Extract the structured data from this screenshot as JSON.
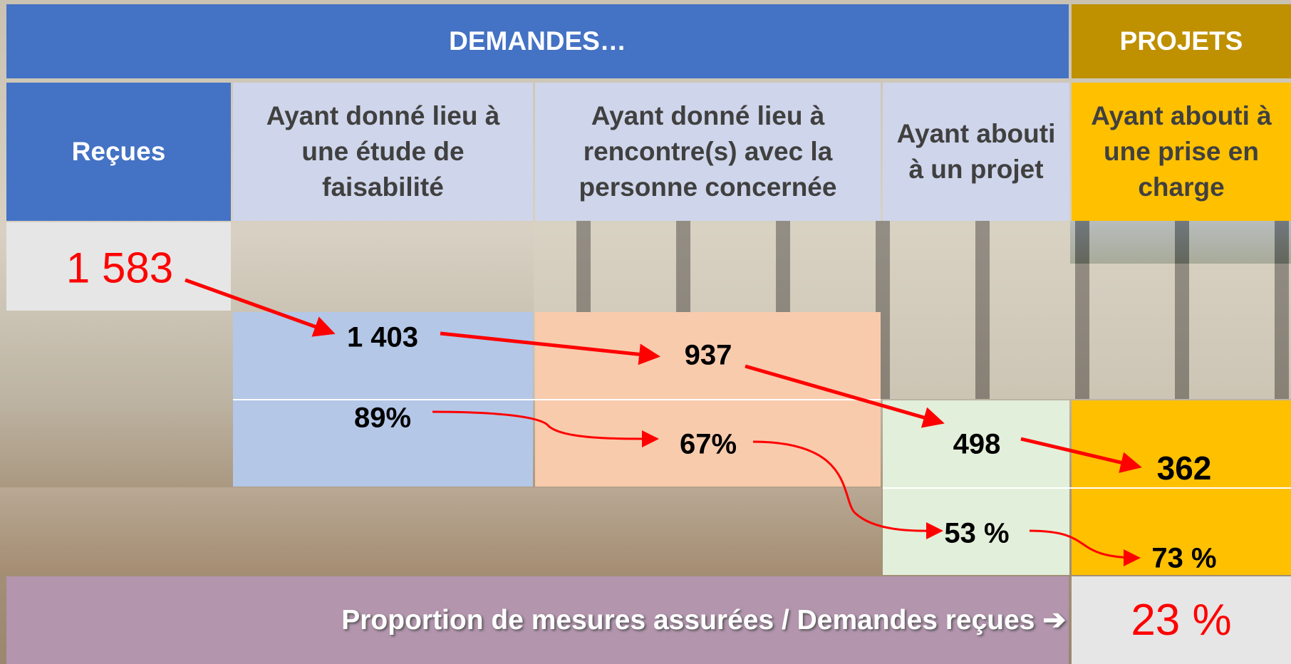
{
  "header": {
    "demandes": "DEMANDES…",
    "projets": "PROJETS"
  },
  "columns": [
    "Reçues",
    "Ayant donné lieu à une étude de faisabilité",
    "Ayant donné lieu à rencontre(s) avec la personne concernée",
    "Ayant abouti à un projet",
    "Ayant abouti à une prise en charge"
  ],
  "counts": [
    "1 583",
    "1 403",
    "937",
    "498",
    "362"
  ],
  "rates": [
    "89%",
    "67%",
    "53 %",
    "73 %"
  ],
  "footer": {
    "label": "Proportion de mesures assurées / Demandes reçues ➔",
    "value": "23 %"
  }
}
